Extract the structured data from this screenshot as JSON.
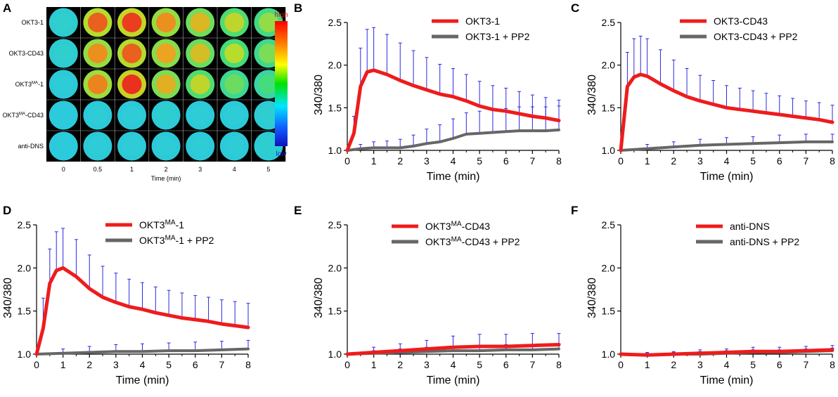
{
  "panel_letters": [
    "A",
    "B",
    "C",
    "D",
    "E",
    "F"
  ],
  "heatmap": {
    "row_labels": [
      "OKT3-1",
      "OKT3-CD43",
      "OKT3MA-1",
      "OKT3MA-CD43",
      "anti-DNS"
    ],
    "row_label_parts": [
      {
        "base": "OKT3-1",
        "sup": "",
        "tail": ""
      },
      {
        "base": "OKT3-CD43",
        "sup": "",
        "tail": ""
      },
      {
        "base": "OKT3",
        "sup": "MA",
        "tail": "-1"
      },
      {
        "base": "OKT3",
        "sup": "MA",
        "tail": "-CD43"
      },
      {
        "base": "anti-DNS",
        "sup": "",
        "tail": ""
      }
    ],
    "col_labels": [
      "0",
      "0.5",
      "1",
      "2",
      "3",
      "4",
      "5"
    ],
    "xlabel": "Time (min)",
    "scale_high": "high",
    "scale_low": "low",
    "intensity": [
      [
        0.3,
        0.85,
        0.9,
        0.78,
        0.7,
        0.62,
        0.55
      ],
      [
        0.3,
        0.78,
        0.85,
        0.75,
        0.68,
        0.6,
        0.52
      ],
      [
        0.28,
        0.8,
        0.92,
        0.72,
        0.62,
        0.5,
        0.45
      ],
      [
        0.27,
        0.28,
        0.28,
        0.29,
        0.28,
        0.28,
        0.29
      ],
      [
        0.27,
        0.28,
        0.28,
        0.28,
        0.28,
        0.28,
        0.29
      ]
    ]
  },
  "chart_data": [
    {
      "panel": "B",
      "type": "line",
      "xlabel": "Time (min)",
      "ylabel": "340/380",
      "xlim": [
        0,
        8
      ],
      "ylim": [
        1.0,
        2.5
      ],
      "xticks": [
        0,
        1,
        2,
        3,
        4,
        5,
        6,
        7,
        8
      ],
      "yticks": [
        "1.0",
        "1.5",
        "2.0",
        "2.5"
      ],
      "series": [
        {
          "name": "OKT3-1",
          "color": "#ee1c1c",
          "x": [
            0,
            0.25,
            0.5,
            0.75,
            1,
            1.5,
            2,
            2.5,
            3,
            3.5,
            4,
            4.5,
            5,
            5.5,
            6,
            6.5,
            7,
            7.5,
            8
          ],
          "y": [
            1.0,
            1.2,
            1.75,
            1.92,
            1.94,
            1.89,
            1.82,
            1.76,
            1.71,
            1.66,
            1.63,
            1.58,
            1.52,
            1.48,
            1.46,
            1.43,
            1.4,
            1.38,
            1.35
          ],
          "err": [
            0,
            0.2,
            0.45,
            0.5,
            0.5,
            0.47,
            0.44,
            0.41,
            0.38,
            0.35,
            0.33,
            0.31,
            0.29,
            0.28,
            0.27,
            0.26,
            0.25,
            0.24,
            0.24
          ]
        },
        {
          "name": "OKT3-1 + PP2",
          "color": "#666666",
          "x": [
            0,
            0.5,
            1,
            1.5,
            2,
            2.5,
            3,
            3.5,
            4,
            4.5,
            5,
            5.5,
            6,
            6.5,
            7,
            7.5,
            8
          ],
          "y": [
            1.0,
            1.02,
            1.03,
            1.03,
            1.03,
            1.05,
            1.08,
            1.1,
            1.14,
            1.19,
            1.2,
            1.21,
            1.22,
            1.23,
            1.23,
            1.23,
            1.24
          ],
          "err": [
            0,
            0.05,
            0.07,
            0.08,
            0.1,
            0.13,
            0.17,
            0.2,
            0.23,
            0.25,
            0.26,
            0.27,
            0.27,
            0.28,
            0.28,
            0.28,
            0.28
          ]
        }
      ]
    },
    {
      "panel": "C",
      "type": "line",
      "xlabel": "Time (min)",
      "ylabel": "340/380",
      "xlim": [
        0,
        8
      ],
      "ylim": [
        1.0,
        2.5
      ],
      "xticks": [
        0,
        1,
        2,
        3,
        4,
        5,
        6,
        7,
        8
      ],
      "yticks": [
        "1.0",
        "1.5",
        "2.0",
        "2.5"
      ],
      "series": [
        {
          "name": "OKT3-CD43",
          "color": "#ee1c1c",
          "x": [
            0,
            0.25,
            0.5,
            0.75,
            1,
            1.5,
            2,
            2.5,
            3,
            3.5,
            4,
            4.5,
            5,
            5.5,
            6,
            6.5,
            7,
            7.5,
            8
          ],
          "y": [
            1.0,
            1.75,
            1.86,
            1.89,
            1.87,
            1.78,
            1.7,
            1.63,
            1.58,
            1.54,
            1.5,
            1.48,
            1.46,
            1.44,
            1.42,
            1.4,
            1.38,
            1.36,
            1.33
          ],
          "err": [
            0,
            0.4,
            0.45,
            0.45,
            0.44,
            0.4,
            0.36,
            0.33,
            0.3,
            0.28,
            0.26,
            0.25,
            0.24,
            0.23,
            0.22,
            0.21,
            0.2,
            0.2,
            0.2
          ]
        },
        {
          "name": "OKT3-CD43 + PP2",
          "color": "#666666",
          "x": [
            0,
            1,
            2,
            3,
            4,
            5,
            6,
            7,
            8
          ],
          "y": [
            1.0,
            1.02,
            1.04,
            1.06,
            1.07,
            1.08,
            1.09,
            1.1,
            1.1
          ],
          "err": [
            0,
            0.05,
            0.06,
            0.07,
            0.08,
            0.08,
            0.09,
            0.09,
            0.09
          ]
        }
      ]
    },
    {
      "panel": "D",
      "type": "line",
      "xlabel": "Time (min)",
      "ylabel": "340/380",
      "xlim": [
        0,
        8
      ],
      "ylim": [
        1.0,
        2.5
      ],
      "xticks": [
        0,
        1,
        2,
        3,
        4,
        5,
        6,
        7,
        8
      ],
      "yticks": [
        "1.0",
        "1.5",
        "2.0",
        "2.5"
      ],
      "series": [
        {
          "name": "OKT3MA-1",
          "name_base": "OKT3",
          "name_sup": "MA",
          "name_tail": "-1",
          "color": "#ee1c1c",
          "x": [
            0,
            0.25,
            0.5,
            0.75,
            1,
            1.5,
            2,
            2.5,
            3,
            3.5,
            4,
            4.5,
            5,
            5.5,
            6,
            6.5,
            7,
            7.5,
            8
          ],
          "y": [
            1.0,
            1.3,
            1.82,
            1.97,
            2.0,
            1.9,
            1.76,
            1.66,
            1.6,
            1.55,
            1.52,
            1.48,
            1.45,
            1.42,
            1.4,
            1.38,
            1.35,
            1.33,
            1.31
          ],
          "err": [
            0,
            0.35,
            0.4,
            0.45,
            0.46,
            0.43,
            0.39,
            0.36,
            0.34,
            0.32,
            0.31,
            0.3,
            0.29,
            0.29,
            0.28,
            0.28,
            0.28,
            0.28,
            0.28
          ]
        },
        {
          "name": "OKT3MA-1 + PP2",
          "name_base": "OKT3",
          "name_sup": "MA",
          "name_tail": "-1 + PP2",
          "color": "#666666",
          "x": [
            0,
            1,
            2,
            3,
            4,
            5,
            6,
            7,
            8
          ],
          "y": [
            1.0,
            1.01,
            1.02,
            1.03,
            1.03,
            1.04,
            1.04,
            1.05,
            1.06
          ],
          "err": [
            0,
            0.05,
            0.07,
            0.08,
            0.09,
            0.09,
            0.1,
            0.1,
            0.1
          ]
        }
      ]
    },
    {
      "panel": "E",
      "type": "line",
      "xlabel": "Time (min)",
      "ylabel": "340/380",
      "xlim": [
        0,
        8
      ],
      "ylim": [
        1.0,
        2.5
      ],
      "xticks": [
        0,
        1,
        2,
        3,
        4,
        5,
        6,
        7,
        8
      ],
      "yticks": [
        "1.0",
        "1.5",
        "2.0",
        "2.5"
      ],
      "series": [
        {
          "name": "OKT3MA-CD43",
          "name_base": "OKT3",
          "name_sup": "MA",
          "name_tail": "-CD43",
          "color": "#ee1c1c",
          "x": [
            0,
            1,
            2,
            3,
            4,
            5,
            6,
            7,
            8
          ],
          "y": [
            1.0,
            1.02,
            1.04,
            1.06,
            1.08,
            1.09,
            1.09,
            1.1,
            1.11
          ],
          "err": [
            0,
            0.06,
            0.08,
            0.1,
            0.13,
            0.14,
            0.14,
            0.14,
            0.13
          ]
        },
        {
          "name": "OKT3MA-CD43 + PP2",
          "name_base": "OKT3",
          "name_sup": "MA",
          "name_tail": "-CD43 + PP2",
          "color": "#666666",
          "x": [
            0,
            1,
            2,
            3,
            4,
            5,
            6,
            7,
            8
          ],
          "y": [
            1.0,
            1.01,
            1.02,
            1.03,
            1.04,
            1.04,
            1.05,
            1.05,
            1.06
          ],
          "err": [
            0,
            0.03,
            0.04,
            0.05,
            0.05,
            0.06,
            0.06,
            0.06,
            0.06
          ]
        }
      ]
    },
    {
      "panel": "F",
      "type": "line",
      "xlabel": "Time (min)",
      "ylabel": "340/380",
      "xlim": [
        0,
        8
      ],
      "ylim": [
        1.0,
        2.5
      ],
      "xticks": [
        0,
        1,
        2,
        3,
        4,
        5,
        6,
        7,
        8
      ],
      "yticks": [
        "1.0",
        "1.5",
        "2.0",
        "2.5"
      ],
      "series": [
        {
          "name": "anti-DNS",
          "color": "#ee1c1c",
          "x": [
            0,
            1,
            2,
            3,
            4,
            5,
            6,
            7,
            8
          ],
          "y": [
            1.0,
            0.99,
            1.0,
            1.01,
            1.02,
            1.03,
            1.03,
            1.04,
            1.05
          ],
          "err": [
            0,
            0.03,
            0.03,
            0.04,
            0.04,
            0.05,
            0.05,
            0.05,
            0.05
          ]
        },
        {
          "name": "anti-DNS + PP2",
          "color": "#666666",
          "x": [
            0,
            1,
            2,
            3,
            4,
            5,
            6,
            7,
            8
          ],
          "y": [
            1.0,
            0.99,
            1.0,
            1.0,
            1.01,
            1.02,
            1.02,
            1.03,
            1.04
          ],
          "err": [
            0,
            0.02,
            0.02,
            0.03,
            0.03,
            0.03,
            0.03,
            0.03,
            0.03
          ]
        }
      ]
    }
  ]
}
